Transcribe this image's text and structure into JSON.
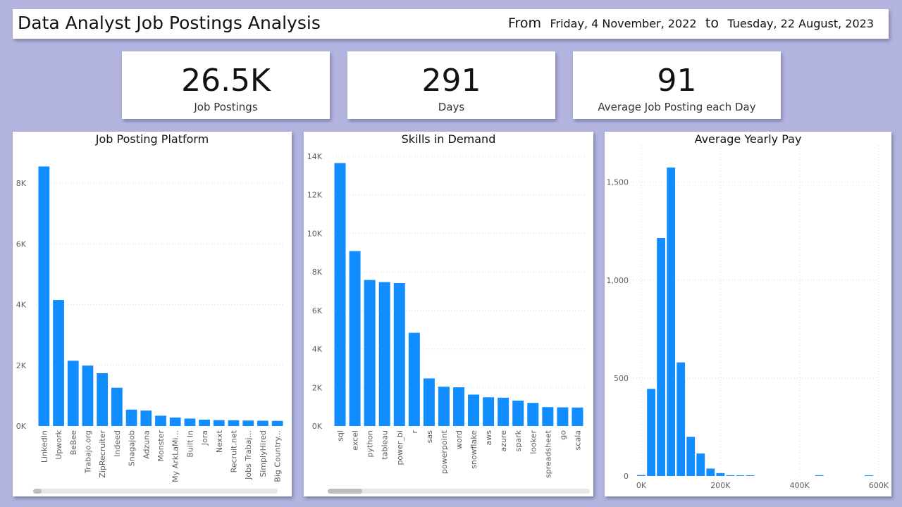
{
  "header": {
    "title": "Data Analyst Job Postings Analysis",
    "from_label": "From",
    "from_date": "Friday, 4 November, 2022",
    "to_label": "to",
    "to_date": "Tuesday, 22 August, 2023"
  },
  "kpis": [
    {
      "value": "26.5K",
      "label": "Job Postings"
    },
    {
      "value": "291",
      "label": "Days"
    },
    {
      "value": "91",
      "label": "Average Job Posting each Day"
    }
  ],
  "colors": {
    "bar": "#118DFF",
    "background": "#B3B5E0",
    "panel": "#FFFFFF",
    "grid": "#D9D9D9",
    "axis_text": "#605E5C"
  },
  "chart_data": [
    {
      "type": "bar",
      "title": "Job Posting Platform",
      "categories": [
        "LinkedIn",
        "Upwork",
        "BeBee",
        "Trabajo.org",
        "ZipRecruiter",
        "Indeed",
        "Snagajob",
        "Adzuna",
        "Monster",
        "My ArkLaMi...",
        "Built In",
        "Jora",
        "Nexxt",
        "Recruit.net",
        "Jobs Trabaj...",
        "SimplyHired",
        "Big Country..."
      ],
      "values": [
        8550,
        4150,
        2150,
        1990,
        1740,
        1260,
        540,
        510,
        340,
        280,
        245,
        210,
        195,
        190,
        180,
        175,
        170
      ],
      "ylim": [
        0,
        9000
      ],
      "yticks": [
        0,
        2000,
        4000,
        6000,
        8000
      ],
      "ytick_labels": [
        "0K",
        "2K",
        "4K",
        "6K",
        "8K"
      ],
      "grid": true
    },
    {
      "type": "bar",
      "title": "Skills in Demand",
      "categories": [
        "sql",
        "excel",
        "python",
        "tableau",
        "power_bi",
        "r",
        "sas",
        "powerpoint",
        "word",
        "snowflake",
        "aws",
        "azure",
        "spark",
        "looker",
        "spreadsheet",
        "go",
        "scala"
      ],
      "values": [
        13650,
        9080,
        7580,
        7470,
        7420,
        4840,
        2470,
        2040,
        2010,
        1630,
        1490,
        1470,
        1320,
        1200,
        980,
        970,
        960
      ],
      "ylim": [
        0,
        14000
      ],
      "yticks": [
        0,
        2000,
        4000,
        6000,
        8000,
        10000,
        12000,
        14000
      ],
      "ytick_labels": [
        "0K",
        "2K",
        "4K",
        "6K",
        "8K",
        "10K",
        "12K",
        "14K"
      ],
      "grid": true
    },
    {
      "type": "bar",
      "title": "Average Yearly Pay",
      "x": [
        0,
        25000,
        50000,
        75000,
        100000,
        125000,
        150000,
        175000,
        200000,
        225000,
        250000,
        275000,
        450000,
        575000
      ],
      "values": [
        5,
        445,
        1215,
        1575,
        580,
        200,
        115,
        38,
        15,
        4,
        3,
        3,
        4,
        3
      ],
      "bin_width": 25000,
      "xlim": [
        -12500,
        600000
      ],
      "ylim": [
        0,
        1650
      ],
      "xticks": [
        0,
        200000,
        400000,
        600000
      ],
      "xtick_labels": [
        "0K",
        "200K",
        "400K",
        "600K"
      ],
      "yticks": [
        0,
        500,
        1000,
        1500
      ],
      "ytick_labels": [
        "0",
        "500",
        "1,000",
        "1,500"
      ],
      "grid": true
    }
  ]
}
